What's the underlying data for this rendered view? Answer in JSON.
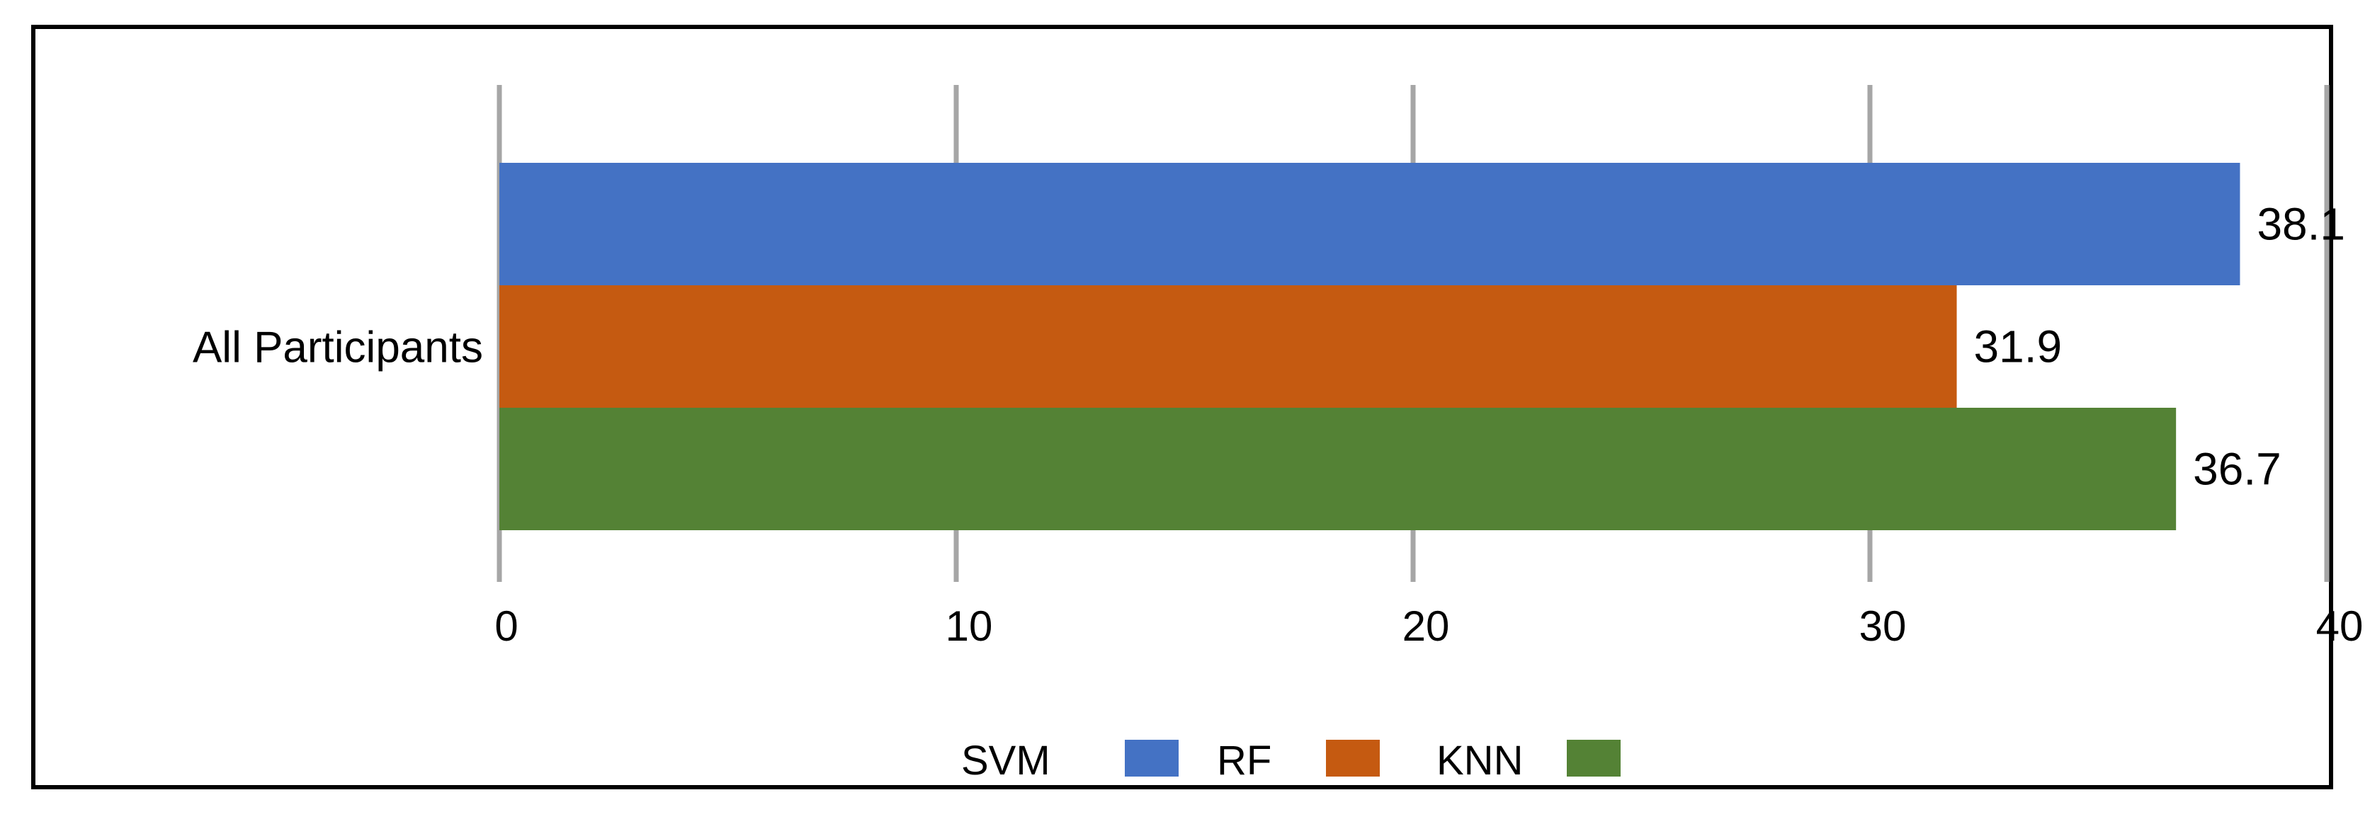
{
  "chart_data": {
    "type": "bar",
    "orientation": "horizontal",
    "title": "",
    "xlabel": "",
    "ylabel": "",
    "categories": [
      "All Participants"
    ],
    "series": [
      {
        "name": "SVM",
        "values": [
          38.1
        ],
        "color": "#4472C4"
      },
      {
        "name": "RF",
        "values": [
          31.9
        ],
        "color": "#C55A11"
      },
      {
        "name": "KNN",
        "values": [
          36.7
        ],
        "color": "#548235"
      }
    ],
    "xlim": [
      0,
      40
    ],
    "ticks": [
      "0",
      "10",
      "20",
      "30",
      "40"
    ],
    "grid": true,
    "legend": "bottom"
  }
}
